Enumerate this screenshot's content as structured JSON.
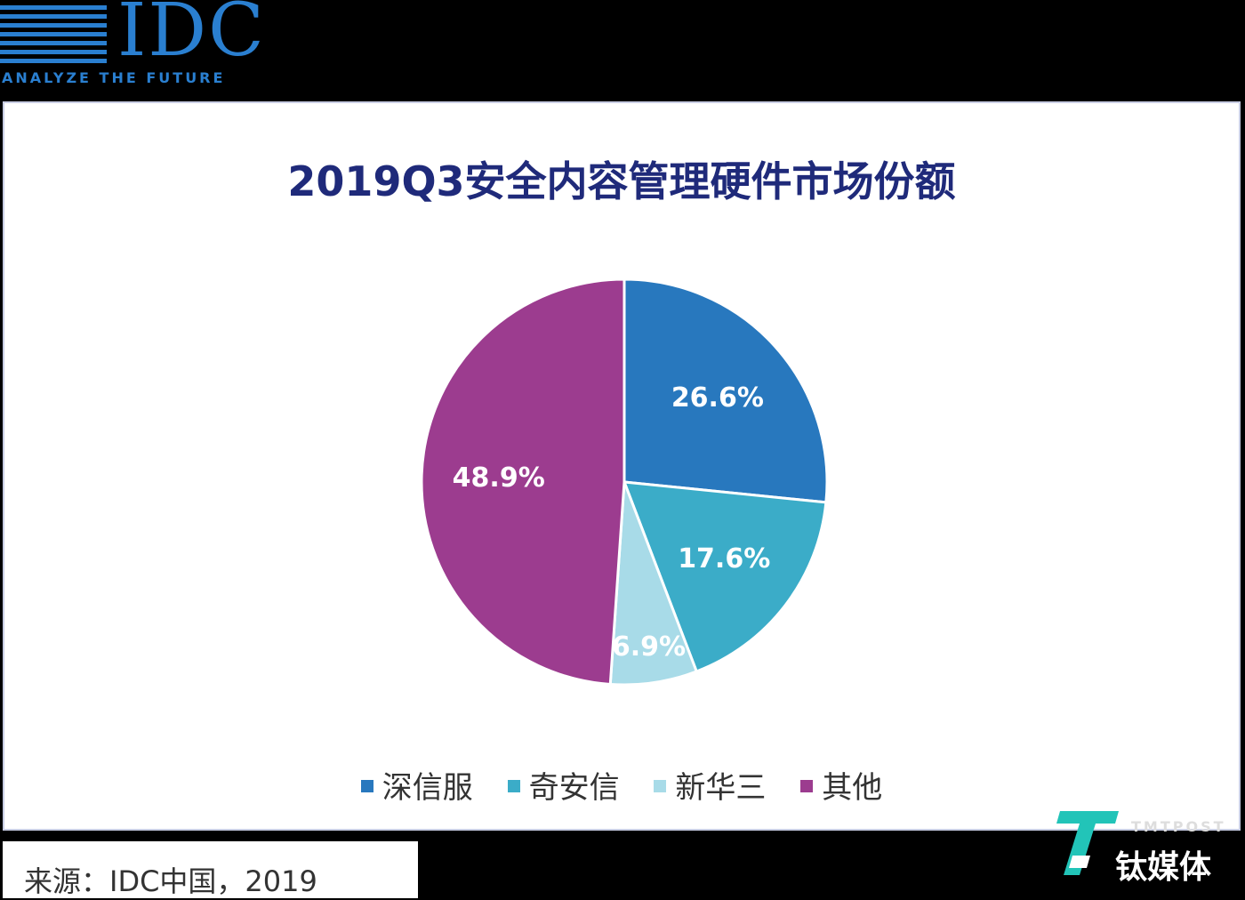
{
  "header": {
    "logo_text": "IDC",
    "logo_tagline": "ANALYZE THE FUTURE"
  },
  "chart_data": {
    "type": "pie",
    "title": "2019Q3安全内容管理硬件市场份额",
    "categories": [
      "深信服",
      "奇安信",
      "新华三",
      "其他"
    ],
    "values": [
      26.6,
      17.6,
      6.9,
      48.9
    ],
    "data_labels": [
      "26.6%",
      "17.6%",
      "6.9%",
      "48.9%"
    ],
    "colors": [
      "#2878be",
      "#3bacc8",
      "#a8dbe8",
      "#9c3c8f"
    ],
    "legend_position": "bottom"
  },
  "source": "来源：IDC中国，2019",
  "watermark": {
    "post": "TMTPOST",
    "name": "钛媒体",
    "colors": [
      "#22c4b8",
      "#ffffff"
    ]
  }
}
